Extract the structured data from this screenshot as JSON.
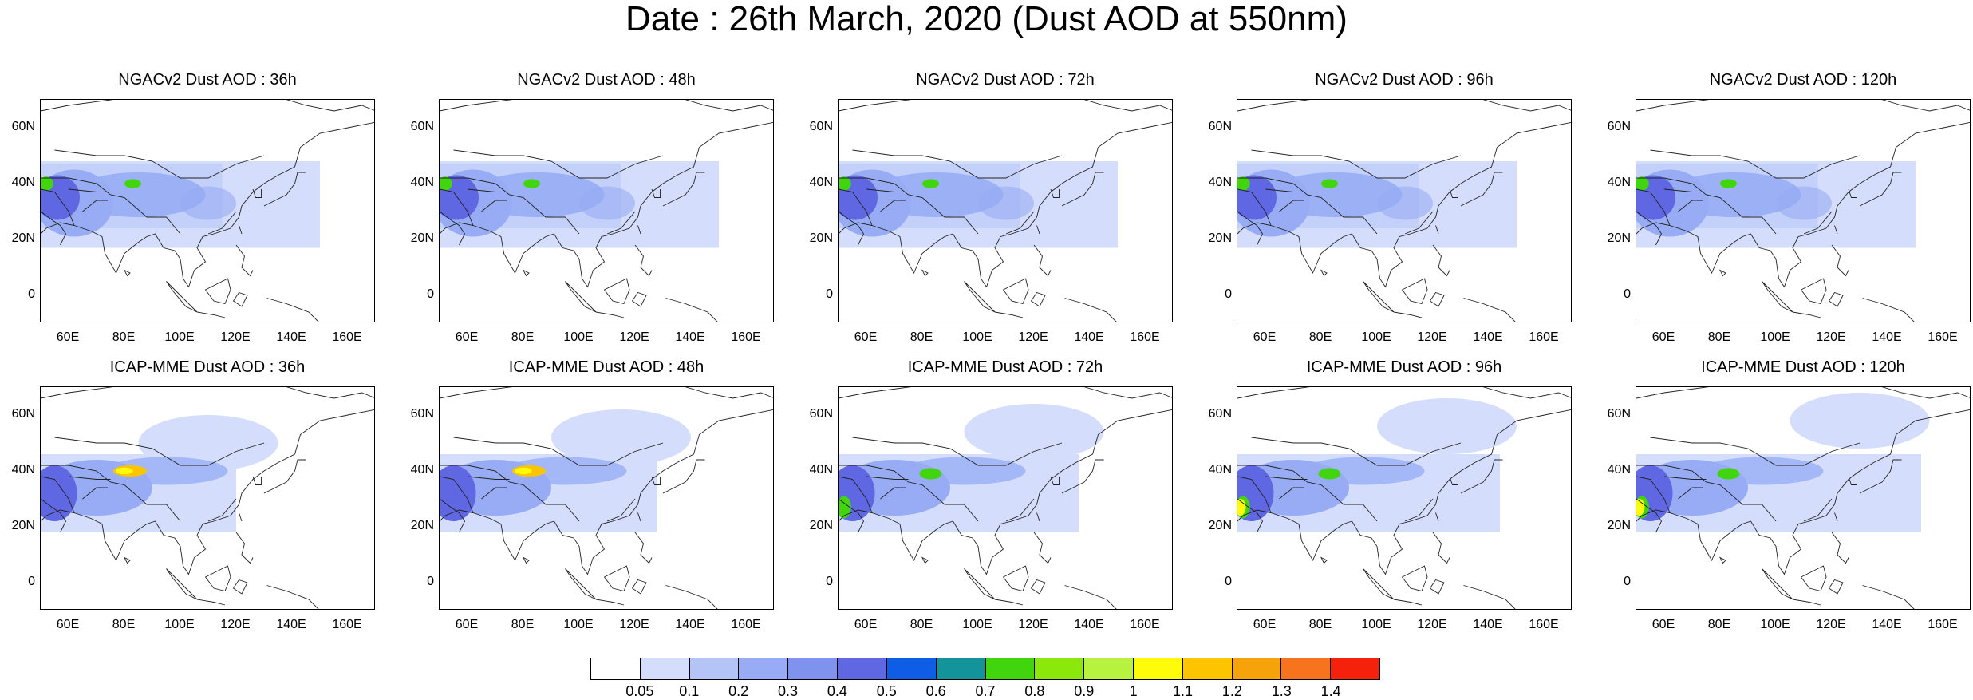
{
  "title": "Date : 26th March, 2020 (Dust AOD at 550nm)",
  "map_panels": [
    {
      "title": "NGACv2 Dust AOD : 36h",
      "model": "NGACv2",
      "lead": "36h"
    },
    {
      "title": "NGACv2 Dust AOD : 48h",
      "model": "NGACv2",
      "lead": "48h"
    },
    {
      "title": "NGACv2 Dust AOD : 72h",
      "model": "NGACv2",
      "lead": "72h"
    },
    {
      "title": "NGACv2 Dust AOD : 96h",
      "model": "NGACv2",
      "lead": "96h"
    },
    {
      "title": "NGACv2 Dust AOD : 120h",
      "model": "NGACv2",
      "lead": "120h"
    },
    {
      "title": "ICAP-MME Dust AOD : 36h",
      "model": "ICAP-MME",
      "lead": "36h"
    },
    {
      "title": "ICAP-MME Dust AOD : 48h",
      "model": "ICAP-MME",
      "lead": "48h"
    },
    {
      "title": "ICAP-MME Dust AOD : 72h",
      "model": "ICAP-MME",
      "lead": "72h"
    },
    {
      "title": "ICAP-MME Dust AOD : 96h",
      "model": "ICAP-MME",
      "lead": "96h"
    },
    {
      "title": "ICAP-MME Dust AOD : 120h",
      "model": "ICAP-MME",
      "lead": "120h"
    }
  ],
  "lat_labels": [
    "60N",
    "40N",
    "20N",
    "0"
  ],
  "lon_labels": [
    "60E",
    "80E",
    "100E",
    "120E",
    "140E",
    "160E"
  ],
  "colorbar": {
    "labels": [
      "0.05",
      "0.1",
      "0.2",
      "0.3",
      "0.4",
      "0.5",
      "0.6",
      "0.7",
      "0.8",
      "0.9",
      "1",
      "1.1",
      "1.2",
      "1.3",
      "1.4"
    ],
    "colors": [
      "#ffffff",
      "#d4defc",
      "#b5c4f7",
      "#97acf4",
      "#7e92ee",
      "#5f67e2",
      "#0f5ce6",
      "#13939a",
      "#41d50d",
      "#8ae80a",
      "#b7f23e",
      "#fefc09",
      "#fcc500",
      "#f6a20a",
      "#f7731d",
      "#f6210d"
    ]
  },
  "colors": {
    "dust_low": "#d4defc",
    "dust_mid": "#97acf4",
    "dust_high": "#5f67e2",
    "hotspot_green": "#41d50d",
    "hotspot_yellow": "#fefc09"
  }
}
